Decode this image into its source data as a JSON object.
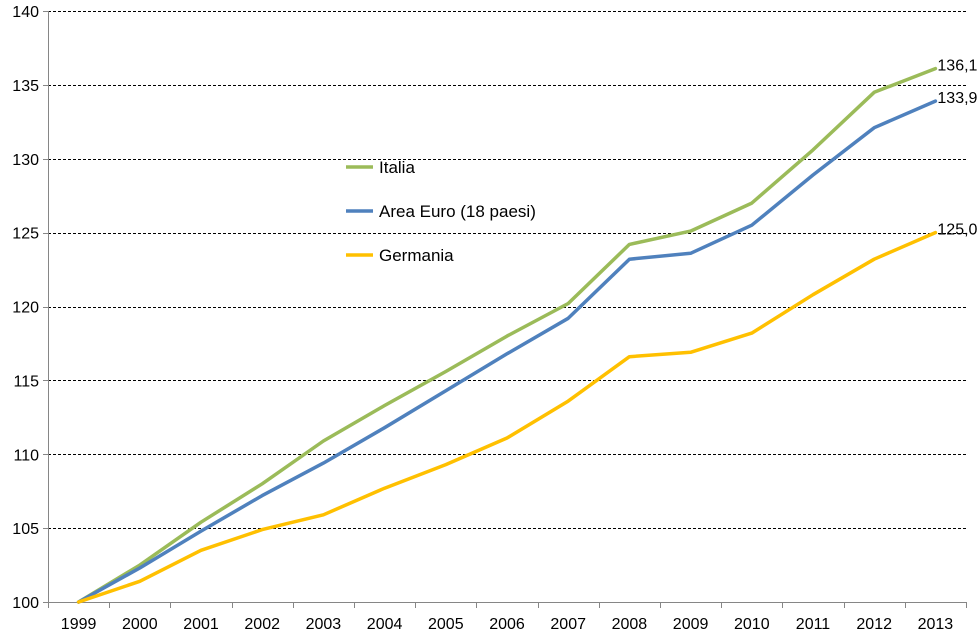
{
  "chart_data": {
    "type": "line",
    "title": "",
    "xlabel": "",
    "ylabel": "",
    "x": [
      "1999",
      "2000",
      "2001",
      "2002",
      "2003",
      "2004",
      "2005",
      "2006",
      "2007",
      "2008",
      "2009",
      "2010",
      "2011",
      "2012",
      "2013"
    ],
    "ylim": [
      100,
      140
    ],
    "yticks": [
      100,
      105,
      110,
      115,
      120,
      125,
      130,
      135,
      140
    ],
    "grid": "horizontal dashed",
    "legend_position": "center-left",
    "series": [
      {
        "name": "Italia",
        "color": "#9BBB59",
        "values": [
          100.0,
          102.5,
          105.4,
          108.0,
          110.9,
          113.3,
          115.6,
          118.0,
          120.2,
          124.2,
          125.1,
          127.0,
          130.6,
          134.5,
          136.1
        ],
        "end_label": "136,1"
      },
      {
        "name": "Area Euro (18 paesi)",
        "color": "#4F81BD",
        "values": [
          100.0,
          102.3,
          104.8,
          107.2,
          109.4,
          111.8,
          114.3,
          116.8,
          119.2,
          123.2,
          123.6,
          125.5,
          128.9,
          132.1,
          133.9
        ],
        "end_label": "133,9"
      },
      {
        "name": "Germania",
        "color": "#FFC000",
        "values": [
          100.0,
          101.4,
          103.5,
          104.9,
          105.9,
          107.7,
          109.3,
          111.1,
          113.6,
          116.6,
          116.9,
          118.2,
          120.8,
          123.2,
          125.0
        ],
        "end_label": "125,0"
      }
    ]
  }
}
